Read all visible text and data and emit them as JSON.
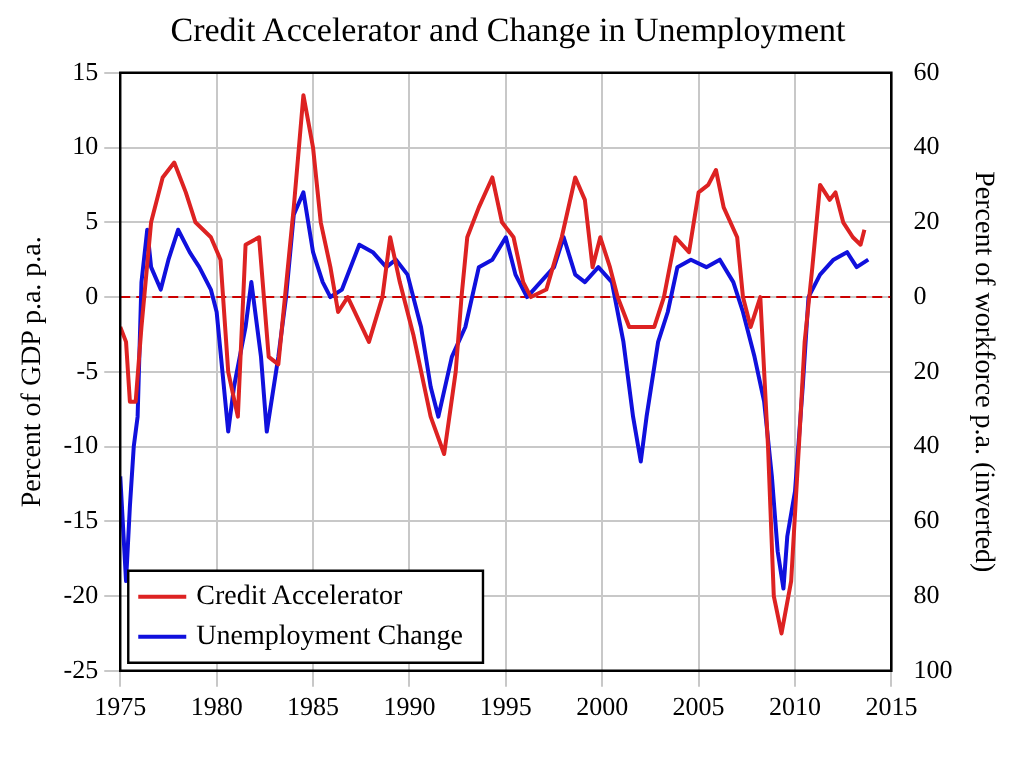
{
  "chart_data": {
    "type": "line",
    "title": "Credit Accelerator and Change in Unemployment",
    "ylabel": "Percent of GDP p.a. p.a.",
    "y2label": "Percent of workforce p.a. (inverted)",
    "xlim": [
      1975,
      2015
    ],
    "xticks": [
      1975,
      1980,
      1985,
      1990,
      1995,
      2000,
      2005,
      2010,
      2015
    ],
    "ylim": [
      -25,
      15
    ],
    "yticks": [
      -25,
      -20,
      -15,
      -10,
      -5,
      0,
      5,
      10,
      15
    ],
    "y2lim": [
      100,
      -60
    ],
    "y2ticks": [
      {
        "value": -60,
        "label": "60"
      },
      {
        "value": -40,
        "label": "40"
      },
      {
        "value": -20,
        "label": "20"
      },
      0,
      20,
      40,
      60,
      80,
      100
    ],
    "grid": true,
    "legend": "bottom left",
    "line_style": "solid",
    "ref_lines": [
      {
        "axis": "y",
        "value": 0,
        "color": "#cc0000",
        "line_style": "dashed"
      }
    ],
    "series": [
      {
        "name": "Credit Accelerator",
        "color": "#dd2222",
        "x": [
          1975.0,
          1975.3,
          1975.5,
          1975.8,
          1976.1,
          1976.6,
          1977.2,
          1977.8,
          1978.4,
          1978.9,
          1979.7,
          1980.2,
          1980.6,
          1981.1,
          1981.5,
          1982.2,
          1982.7,
          1983.2,
          1984.0,
          1984.5,
          1985.0,
          1985.4,
          1985.9,
          1986.3,
          1986.8,
          1987.9,
          1988.6,
          1989.0,
          1989.5,
          1990.2,
          1991.1,
          1991.8,
          1992.4,
          1992.7,
          1993.0,
          1993.6,
          1994.3,
          1994.8,
          1995.4,
          1995.9,
          1996.3,
          1997.1,
          1997.9,
          1998.6,
          1999.1,
          1999.5,
          1999.9,
          2000.4,
          2000.8,
          2001.4,
          2002.1,
          2002.7,
          2003.2,
          2003.8,
          2004.5,
          2005.0,
          2005.5,
          2005.9,
          2006.3,
          2007.0,
          2007.3,
          2007.7,
          2008.2,
          2008.6,
          2008.9,
          2009.3,
          2009.8,
          2010.2,
          2010.5,
          2010.9,
          2011.3,
          2011.8,
          2012.1,
          2012.5,
          2013.0,
          2013.4,
          2013.6
        ],
        "values": [
          -2,
          -3,
          -7,
          -7,
          -2,
          5,
          8,
          9,
          7,
          5,
          4,
          2.5,
          -5,
          -8,
          3.5,
          4,
          -4,
          -4.5,
          6,
          13.5,
          10,
          5,
          2,
          -1,
          0,
          -3,
          0,
          4,
          1,
          -2.5,
          -8,
          -10.5,
          -5,
          0,
          4,
          6,
          8,
          5,
          4,
          1,
          0,
          0.5,
          4,
          8,
          6.5,
          2,
          4,
          2,
          0,
          -2,
          -2,
          -2,
          0,
          4,
          3,
          7,
          7.5,
          8.5,
          6,
          4,
          0,
          -2,
          0,
          -10,
          -20,
          -22.5,
          -19,
          -10,
          -3,
          2,
          7.5,
          6.5,
          7,
          5,
          4,
          3.5,
          4.5
        ]
      },
      {
        "name": "Unemployment Change",
        "color": "#1010dd",
        "axis": "y2",
        "x": [
          1975.0,
          1975.3,
          1975.5,
          1975.7,
          1975.9,
          1976.1,
          1976.4,
          1976.6,
          1977.1,
          1977.5,
          1978.0,
          1978.6,
          1979.1,
          1979.7,
          1980.0,
          1980.6,
          1980.9,
          1981.5,
          1981.8,
          1982.3,
          1982.6,
          1983.2,
          1983.6,
          1984.0,
          1984.5,
          1985.0,
          1985.5,
          1985.9,
          1986.5,
          1987.4,
          1988.1,
          1988.8,
          1989.3,
          1989.9,
          1990.6,
          1991.1,
          1991.5,
          1992.2,
          1992.9,
          1993.6,
          1994.3,
          1995.0,
          1995.5,
          1996.1,
          1996.8,
          1997.5,
          1998.0,
          1998.6,
          1999.1,
          1999.8,
          2000.5,
          2001.1,
          2001.6,
          2002.0,
          2002.3,
          2002.9,
          2003.4,
          2003.9,
          2004.6,
          2005.4,
          2006.1,
          2006.8,
          2007.3,
          2007.9,
          2008.4,
          2008.8,
          2009.1,
          2009.4,
          2009.6,
          2010.0,
          2010.4,
          2010.7,
          2011.3,
          2012.0,
          2012.7,
          2013.2,
          2013.8
        ],
        "values": [
          48,
          76,
          56,
          40,
          32,
          -4,
          -18,
          -8,
          -2,
          -10,
          -18,
          -12,
          -8,
          -2,
          4,
          36,
          24,
          8,
          -4,
          16,
          36,
          16,
          0,
          -22,
          -28,
          -12,
          -4,
          0,
          -2,
          -14,
          -12,
          -8,
          -10,
          -6,
          8,
          24,
          32,
          16,
          8,
          -8,
          -10,
          -16,
          -6,
          0,
          -4,
          -8,
          -16,
          -6,
          -4,
          -8,
          -4,
          12,
          32,
          44,
          32,
          12,
          4,
          -8,
          -10,
          -8,
          -10,
          -4,
          4,
          16,
          28,
          48,
          68,
          78,
          64,
          52,
          24,
          0,
          -6,
          -10,
          -12,
          -8,
          -10
        ]
      }
    ]
  }
}
